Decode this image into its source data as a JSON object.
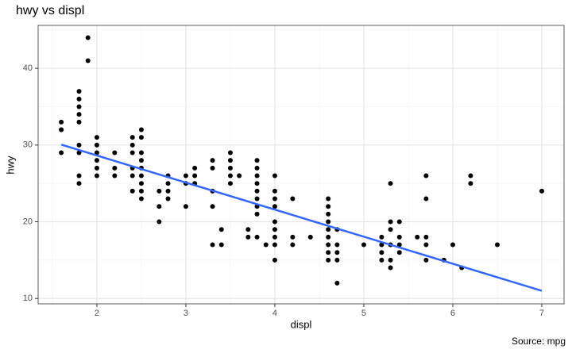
{
  "chart_data": {
    "type": "scatter",
    "title": "hwy vs displ",
    "x_label": "displ",
    "y_label": "hwy",
    "caption": "Source: mpg",
    "x": [
      1.6,
      1.6,
      1.6,
      1.6,
      1.8,
      1.8,
      1.8,
      1.8,
      1.8,
      1.8,
      1.8,
      1.8,
      1.8,
      1.9,
      1.9,
      2.0,
      2.0,
      2.0,
      2.0,
      2.0,
      2.0,
      2.2,
      2.2,
      2.2,
      2.4,
      2.4,
      2.4,
      2.4,
      2.4,
      2.4,
      2.5,
      2.5,
      2.5,
      2.5,
      2.5,
      2.5,
      2.5,
      2.5,
      2.5,
      2.7,
      2.7,
      2.7,
      2.8,
      2.8,
      2.8,
      2.8,
      3.0,
      3.0,
      3.0,
      3.1,
      3.1,
      3.1,
      3.3,
      3.3,
      3.3,
      3.3,
      3.3,
      3.4,
      3.4,
      3.5,
      3.5,
      3.5,
      3.5,
      3.5,
      3.6,
      3.7,
      3.7,
      3.8,
      3.8,
      3.8,
      3.8,
      3.8,
      3.8,
      3.8,
      3.8,
      3.8,
      3.9,
      4.0,
      4.0,
      4.0,
      4.0,
      4.0,
      4.0,
      4.0,
      4.0,
      4.0,
      4.2,
      4.2,
      4.2,
      4.4,
      4.6,
      4.6,
      4.6,
      4.6,
      4.6,
      4.6,
      4.6,
      4.6,
      4.6,
      4.7,
      4.7,
      4.7,
      4.7,
      4.7,
      5.0,
      5.2,
      5.2,
      5.2,
      5.2,
      5.3,
      5.3,
      5.3,
      5.3,
      5.3,
      5.3,
      5.4,
      5.4,
      5.4,
      5.4,
      5.6,
      5.7,
      5.7,
      5.7,
      5.7,
      5.7,
      5.9,
      6.0,
      6.1,
      6.2,
      6.2,
      6.5,
      7.0
    ],
    "values": [
      33,
      32,
      32,
      29,
      37,
      36,
      35,
      34,
      33,
      30,
      29,
      26,
      25,
      44,
      41,
      31,
      30,
      29,
      28,
      27,
      26,
      29,
      27,
      26,
      31,
      30,
      29,
      27,
      26,
      24,
      32,
      31,
      29,
      28,
      27,
      26,
      25,
      24,
      23,
      24,
      22,
      20,
      26,
      25,
      24,
      23,
      26,
      25,
      22,
      27,
      26,
      25,
      28,
      27,
      24,
      22,
      17,
      19,
      17,
      29,
      28,
      27,
      26,
      25,
      26,
      19,
      18,
      28,
      27,
      26,
      25,
      24,
      23,
      22,
      21,
      18,
      17,
      26,
      24,
      23,
      22,
      20,
      19,
      18,
      17,
      15,
      23,
      18,
      17,
      18,
      23,
      22,
      21,
      20,
      19,
      18,
      17,
      16,
      15,
      19,
      17,
      16,
      15,
      12,
      17,
      18,
      17,
      16,
      15,
      25,
      20,
      19,
      17,
      15,
      14,
      20,
      18,
      17,
      16,
      18,
      26,
      23,
      18,
      17,
      15,
      15,
      17,
      14,
      26,
      25,
      17,
      24
    ],
    "color": "#000000",
    "fit": {
      "x": [
        1.6,
        7.0
      ],
      "values": [
        30.05,
        11.0
      ],
      "color": "#3366ff"
    },
    "xlim": [
      1.34,
      7.25
    ],
    "ylim": [
      9.3,
      45.6
    ],
    "xticks": [
      2,
      3,
      4,
      5,
      6,
      7
    ],
    "yticks": [
      10,
      20,
      30,
      40
    ],
    "xminor": [
      1.5,
      2.5,
      3.5,
      4.5,
      5.5,
      6.5
    ],
    "yminor": [
      15,
      25,
      35,
      45
    ],
    "grid": true
  }
}
